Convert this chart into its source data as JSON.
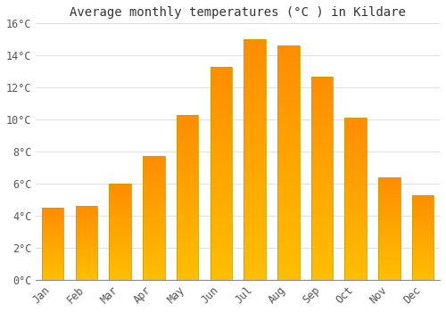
{
  "title": "Average monthly temperatures (°C ) in Kildare",
  "months": [
    "Jan",
    "Feb",
    "Mar",
    "Apr",
    "May",
    "Jun",
    "Jul",
    "Aug",
    "Sep",
    "Oct",
    "Nov",
    "Dec"
  ],
  "values": [
    4.5,
    4.6,
    6.0,
    7.7,
    10.3,
    13.3,
    15.0,
    14.6,
    12.7,
    10.1,
    6.4,
    5.3
  ],
  "bar_color_bottom": "#FFBE00",
  "bar_color_top": "#FF8C00",
  "bar_edge_color": "#C8A000",
  "ylim": [
    0,
    16
  ],
  "yticks": [
    0,
    2,
    4,
    6,
    8,
    10,
    12,
    14,
    16
  ],
  "ytick_labels": [
    "0°C",
    "2°C",
    "4°C",
    "6°C",
    "8°C",
    "10°C",
    "12°C",
    "14°C",
    "16°C"
  ],
  "background_color": "#FFFFFF",
  "plot_bg_color": "#FFFFFF",
  "grid_color": "#E0E0E0",
  "title_fontsize": 10,
  "tick_fontsize": 8.5,
  "font_family": "monospace"
}
